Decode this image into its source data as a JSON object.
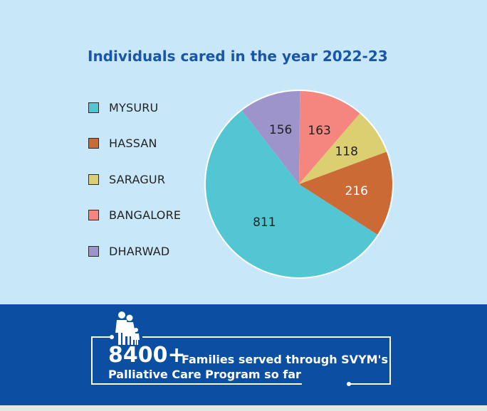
{
  "chart_data": {
    "type": "pie",
    "title": "Individuals cared in the year 2022-23",
    "categories": [
      "MYSURU",
      "HASSAN",
      "SARAGUR",
      "BANGALORE",
      "DHARWAD"
    ],
    "values": [
      811,
      216,
      118,
      163,
      156
    ],
    "colors": [
      "#52c6d2",
      "#cb6a35",
      "#dbcf72",
      "#f4867f",
      "#9d94cb"
    ],
    "legend_position": "left"
  },
  "banner": {
    "number": "8400+",
    "line1": "Families served through SVYM's",
    "line2": "Palliative Care Program so far",
    "icon": "family-icon"
  }
}
